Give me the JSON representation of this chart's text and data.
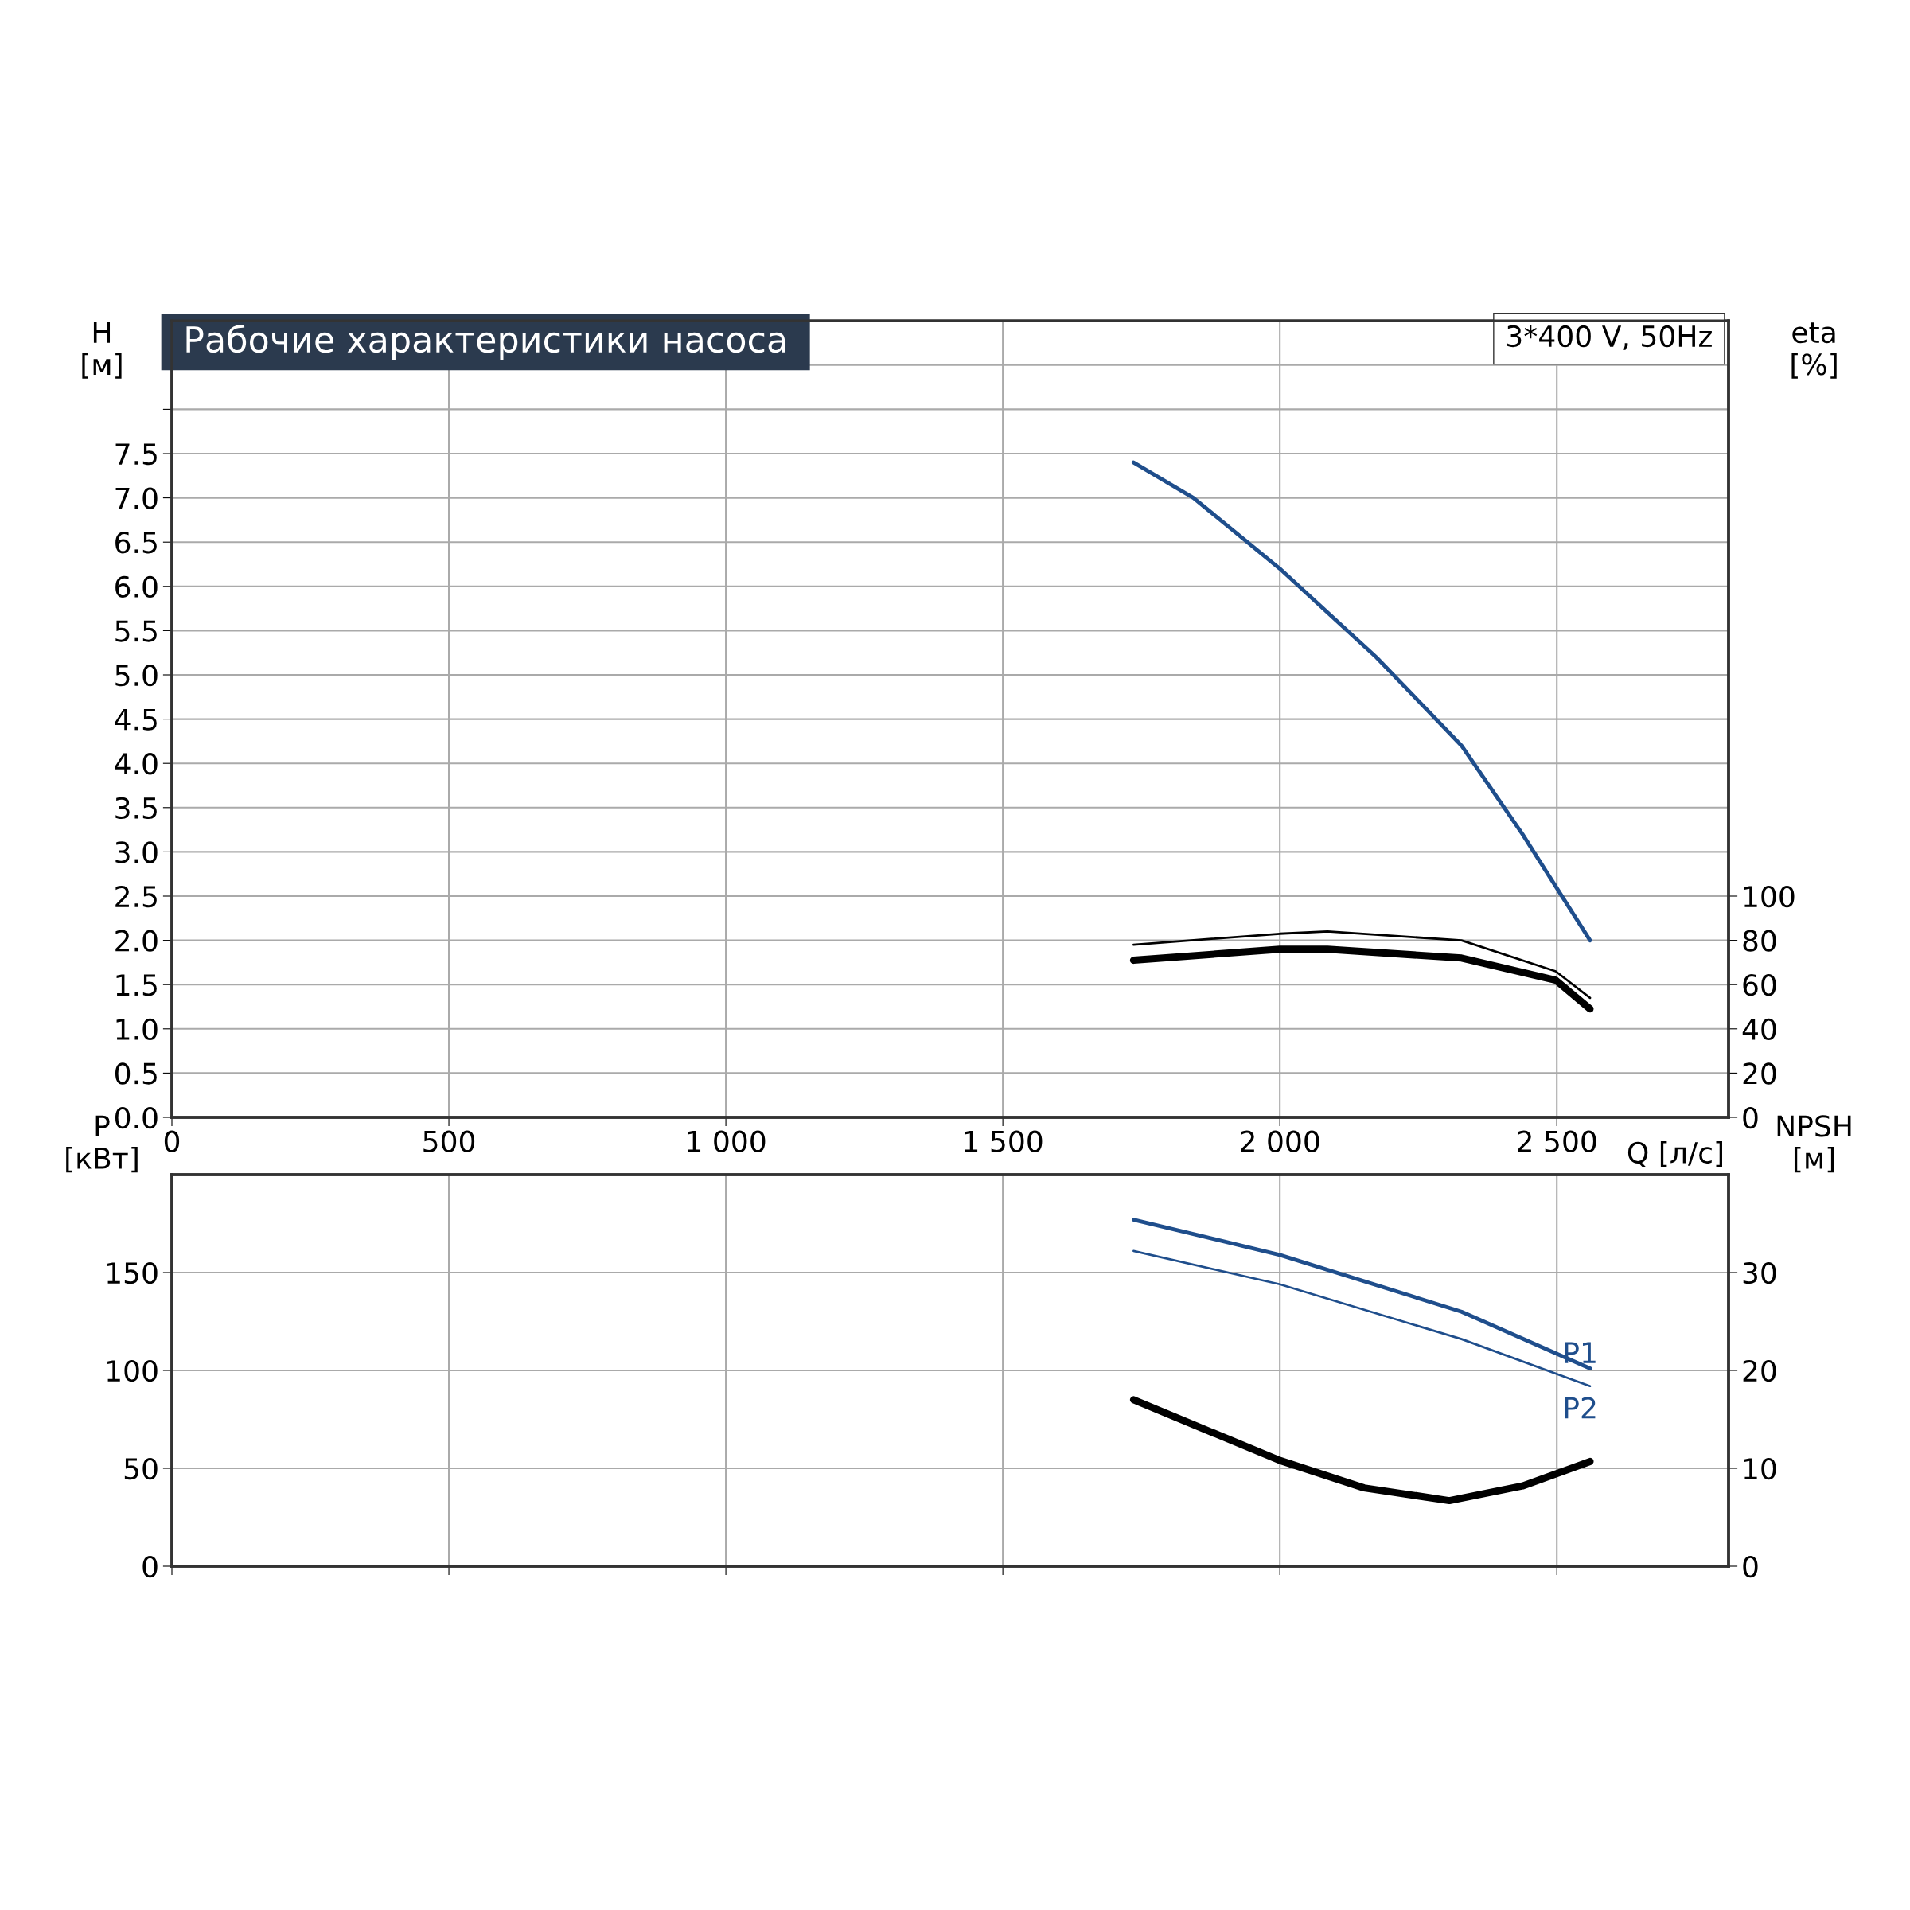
{
  "chart_data": [
    {
      "type": "line",
      "title": "Рабочие характеристики насоса",
      "xlabel": "Q [л/с]",
      "ylabel": "H\n[м]",
      "y2label": "eta\n[%]",
      "annotations": [
        "3*400 V, 50Hz"
      ],
      "xlim": [
        0,
        2810
      ],
      "xticks": [
        {
          "value": 0,
          "label": "0"
        },
        {
          "value": 500,
          "label": "500"
        },
        {
          "value": 1000,
          "label": "1 000"
        },
        {
          "value": 1500,
          "label": "1 500"
        },
        {
          "value": 2000,
          "label": "2 000"
        },
        {
          "value": 2500,
          "label": "2 500"
        }
      ],
      "ylim": [
        0,
        9.0
      ],
      "yticks": [
        {
          "value": 0,
          "label": "0.0"
        },
        {
          "value": 0.5,
          "label": "0.5"
        },
        {
          "value": 1,
          "label": "1.0"
        },
        {
          "value": 1.5,
          "label": "1.5"
        },
        {
          "value": 2,
          "label": "2.0"
        },
        {
          "value": 2.5,
          "label": "2.5"
        },
        {
          "value": 3,
          "label": "3.0"
        },
        {
          "value": 3.5,
          "label": "3.5"
        },
        {
          "value": 4,
          "label": "4.0"
        },
        {
          "value": 4.5,
          "label": "4.5"
        },
        {
          "value": 5,
          "label": "5.0"
        },
        {
          "value": 5.5,
          "label": "5.5"
        },
        {
          "value": 6,
          "label": "6.0"
        },
        {
          "value": 6.5,
          "label": "6.5"
        },
        {
          "value": 7,
          "label": "7.0"
        },
        {
          "value": 7.5,
          "label": "7.5"
        },
        {
          "value": 8,
          "label": null
        },
        {
          "value": 8.5,
          "label": null
        }
      ],
      "y2lim": [
        0,
        360
      ],
      "y2ticks": [
        0,
        20,
        40,
        60,
        80,
        100
      ],
      "grid": true,
      "legend": false,
      "tick_labels": "xy",
      "series": [
        {
          "color": "#1f4e8c",
          "x": [
            1736,
            1844,
            2000,
            2174,
            2328,
            2438,
            2560
          ],
          "values": [
            7.4,
            7.0,
            6.2,
            5.2,
            4.2,
            3.2,
            2.0
          ]
        },
        {
          "color": "#000000",
          "axis": "y2",
          "x": [
            1736,
            2000,
            2086,
            2328,
            2498,
            2560
          ],
          "values": [
            78,
            83,
            84,
            80,
            66,
            54
          ]
        },
        {
          "color": "#000000",
          "axis": "y2",
          "x": [
            1736,
            2000,
            2086,
            2328,
            2498,
            2560
          ],
          "values": [
            71,
            76,
            76,
            72,
            62,
            49
          ]
        }
      ]
    },
    {
      "type": "line",
      "ylabel": "P\n[кВт]",
      "y2label": "NPSH\n[м]",
      "xlim": [
        0,
        2810
      ],
      "ylim": [
        0,
        200
      ],
      "yticks": [
        0,
        50,
        100,
        150
      ],
      "y2lim": [
        0,
        40
      ],
      "y2ticks": [
        0,
        10,
        20,
        30
      ],
      "grid": true,
      "legend": false,
      "tick_labels": "y",
      "xticks": [
        {
          "value": 0,
          "label": null
        },
        {
          "value": 500,
          "label": null
        },
        {
          "value": 1000,
          "label": null
        },
        {
          "value": 1500,
          "label": null
        },
        {
          "value": 2000,
          "label": null
        },
        {
          "value": 2500,
          "label": null
        }
      ],
      "series": [
        {
          "name": "P1",
          "color": "#1f4e8c",
          "x": [
            1736,
            2000,
            2328,
            2560
          ],
          "values": [
            177,
            159,
            130,
            101
          ]
        },
        {
          "name": "P2",
          "color": "#1f4e8c",
          "x": [
            1736,
            2000,
            2328,
            2560
          ],
          "values": [
            161,
            144,
            116,
            92
          ]
        },
        {
          "color": "#000000",
          "axis": "y2",
          "x": [
            1736,
            2000,
            2152,
            2306,
            2438,
            2560
          ],
          "values": [
            17,
            10.8,
            8.0,
            6.7,
            8.2,
            10.7
          ]
        }
      ]
    }
  ]
}
